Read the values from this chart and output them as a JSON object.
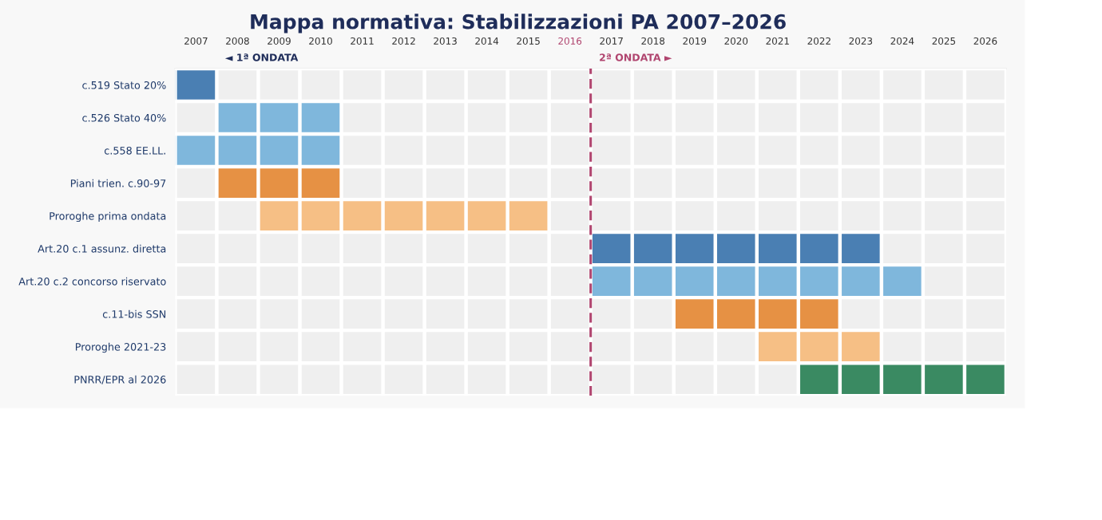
{
  "chart_data": {
    "type": "bar",
    "orientation": "horizontal",
    "title": "Mappa normativa: Stabilizzazioni PA 2007–2026",
    "categories": [
      "c.519 Stato 20%",
      "c.526 Stato 40%",
      "c.558 EE.LL.",
      "Piani trien. c.90-97",
      "Proroghe prima ondata",
      "Art.20 c.1 assunz. diretta",
      "Art.20 c.2 concorso riservato",
      "c.11-bis SSN",
      "Proroghe 2021-23",
      "PNRR/EPR al 2026"
    ],
    "base": [
      2006.5,
      2007.5,
      2006.5,
      2007.5,
      2008.5,
      2016.5,
      2016.5,
      2018.5,
      2020.5,
      2021.5
    ],
    "values": [
      1,
      3,
      4,
      3,
      7,
      7,
      8,
      4,
      3,
      5
    ],
    "colors": [
      "#4a7fb3",
      "#7fb7dc",
      "#7fb7dc",
      "#e69144",
      "#f6bf85",
      "#4a7fb3",
      "#7fb7dc",
      "#e69144",
      "#f6bf85",
      "#3a8a62"
    ],
    "xlim": [
      2006.5,
      2026.5
    ],
    "xticks": [
      2007,
      2008,
      2009,
      2010,
      2011,
      2012,
      2013,
      2014,
      2015,
      2016,
      2017,
      2018,
      2019,
      2020,
      2021,
      2022,
      2023,
      2024,
      2025,
      2026
    ],
    "ref_lines": [
      {
        "axis": "x",
        "value": 2016.5,
        "color": "#b0456f",
        "line_style": "dashed"
      }
    ],
    "annotations": [
      "◄ 1ª ONDATA",
      "2ª ONDATA ►"
    ],
    "grid": false,
    "legend": false
  }
}
